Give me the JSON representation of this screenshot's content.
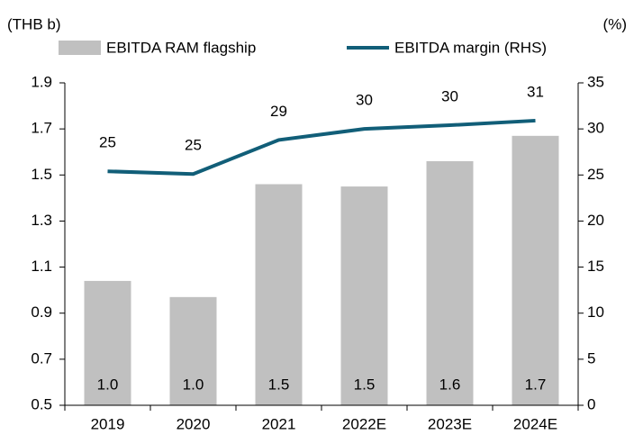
{
  "chart_data": {
    "type": "bar_line",
    "y_label": "(THB b)",
    "y2_label": "(%)",
    "categories": [
      "2019",
      "2020",
      "2021",
      "2022E",
      "2023E",
      "2024E"
    ],
    "series": [
      {
        "name": "EBITDA RAM flagship",
        "type": "bar",
        "color": "#c0c0c0",
        "values": [
          1.04,
          0.97,
          1.46,
          1.45,
          1.56,
          1.67
        ],
        "value_labels": [
          "1.0",
          "1.0",
          "1.5",
          "1.5",
          "1.6",
          "1.7"
        ]
      },
      {
        "name": "EBITDA margin (RHS)",
        "type": "line",
        "axis": "y2",
        "color": "#115e78",
        "values": [
          25.4,
          25.1,
          28.8,
          30.0,
          30.4,
          30.9
        ],
        "value_labels": [
          "25",
          "25",
          "29",
          "30",
          "30",
          "31"
        ]
      }
    ],
    "ylim": [
      0.5,
      1.9
    ],
    "yticks": [
      0.5,
      0.7,
      0.9,
      1.1,
      1.3,
      1.5,
      1.7,
      1.9
    ],
    "y2lim": [
      0,
      35
    ],
    "y2ticks": [
      0,
      5,
      10,
      15,
      20,
      25,
      30,
      35
    ]
  }
}
